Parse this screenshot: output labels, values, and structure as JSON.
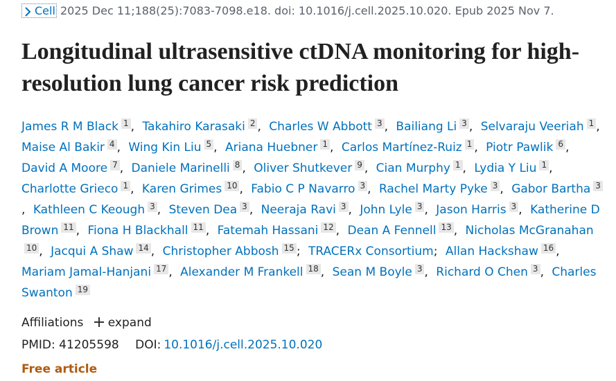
{
  "citation": {
    "journal": "Cell",
    "details": "2025 Dec 11;188(25):7083-7098.e18. doi: 10.1016/j.cell.2025.10.020. Epub 2025 Nov 7."
  },
  "title": "Longitudinal ultrasensitive ctDNA monitoring for high-resolution lung cancer risk prediction",
  "authors": [
    {
      "name": "James R M Black",
      "aff": 1,
      "sep": ","
    },
    {
      "name": "Takahiro Karasaki",
      "aff": 2,
      "sep": ","
    },
    {
      "name": "Charles W Abbott",
      "aff": 3,
      "sep": ","
    },
    {
      "name": "Bailiang Li",
      "aff": 3,
      "sep": ","
    },
    {
      "name": "Selvaraju Veeriah",
      "aff": 1,
      "sep": ","
    },
    {
      "name": "Maise Al Bakir",
      "aff": 4,
      "sep": ","
    },
    {
      "name": "Wing Kin Liu",
      "aff": 5,
      "sep": ","
    },
    {
      "name": "Ariana Huebner",
      "aff": 1,
      "sep": ","
    },
    {
      "name": "Carlos Martínez-Ruiz",
      "aff": 1,
      "sep": ","
    },
    {
      "name": "Piotr Pawlik",
      "aff": 6,
      "sep": ","
    },
    {
      "name": "David A Moore",
      "aff": 7,
      "sep": ","
    },
    {
      "name": "Daniele Marinelli",
      "aff": 8,
      "sep": ","
    },
    {
      "name": "Oliver Shutkever",
      "aff": 9,
      "sep": ","
    },
    {
      "name": "Cian Murphy",
      "aff": 1,
      "sep": ","
    },
    {
      "name": "Lydia Y Liu",
      "aff": 1,
      "sep": ","
    },
    {
      "name": "Charlotte Grieco",
      "aff": 1,
      "sep": ","
    },
    {
      "name": "Karen Grimes",
      "aff": 10,
      "sep": ","
    },
    {
      "name": "Fabio C P Navarro",
      "aff": 3,
      "sep": ","
    },
    {
      "name": "Rachel Marty Pyke",
      "aff": 3,
      "sep": ","
    },
    {
      "name": "Gabor Bartha",
      "aff": 3,
      "sep": ","
    },
    {
      "name": "Kathleen C Keough",
      "aff": 3,
      "sep": ","
    },
    {
      "name": "Steven Dea",
      "aff": 3,
      "sep": ","
    },
    {
      "name": "Neeraja Ravi",
      "aff": 3,
      "sep": ","
    },
    {
      "name": "John Lyle",
      "aff": 3,
      "sep": ","
    },
    {
      "name": "Jason Harris",
      "aff": 3,
      "sep": ","
    },
    {
      "name": "Katherine D Brown",
      "aff": 11,
      "sep": ","
    },
    {
      "name": "Fiona H Blackhall",
      "aff": 11,
      "sep": ","
    },
    {
      "name": "Fatemah Hassani",
      "aff": 12,
      "sep": ","
    },
    {
      "name": "Dean A Fennell",
      "aff": 13,
      "sep": ","
    },
    {
      "name": "Nicholas McGranahan",
      "aff": 10,
      "sep": ","
    },
    {
      "name": "Jacqui A Shaw",
      "aff": 14,
      "sep": ","
    },
    {
      "name": "Christopher Abbosh",
      "aff": 15,
      "sep": ";"
    },
    {
      "name": "TRACERx Consortium",
      "sep": ";"
    },
    {
      "name": "Allan Hackshaw",
      "aff": 16,
      "sep": ","
    },
    {
      "name": "Mariam Jamal-Hanjani",
      "aff": 17,
      "sep": ","
    },
    {
      "name": "Alexander M Frankell",
      "aff": 18,
      "sep": ","
    },
    {
      "name": "Sean M Boyle",
      "aff": 3,
      "sep": ","
    },
    {
      "name": "Richard O Chen",
      "aff": 3,
      "sep": ","
    },
    {
      "name": "Charles Swanton",
      "aff": 19
    }
  ],
  "affiliations": {
    "label": "Affiliations",
    "toggle": "expand"
  },
  "identifiers": {
    "pmid_label": "PMID:",
    "pmid": "41205598",
    "doi_label": "DOI:",
    "doi": "10.1016/j.cell.2025.10.020"
  },
  "free_article": "Free article"
}
